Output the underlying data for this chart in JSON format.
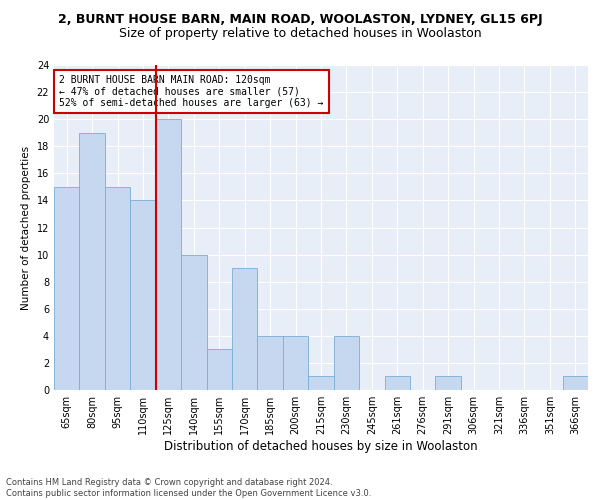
{
  "title": "2, BURNT HOUSE BARN, MAIN ROAD, WOOLASTON, LYDNEY, GL15 6PJ",
  "subtitle": "Size of property relative to detached houses in Woolaston",
  "xlabel": "Distribution of detached houses by size in Woolaston",
  "ylabel": "Number of detached properties",
  "categories": [
    "65sqm",
    "80sqm",
    "95sqm",
    "110sqm",
    "125sqm",
    "140sqm",
    "155sqm",
    "170sqm",
    "185sqm",
    "200sqm",
    "215sqm",
    "230sqm",
    "245sqm",
    "261sqm",
    "276sqm",
    "291sqm",
    "306sqm",
    "321sqm",
    "336sqm",
    "351sqm",
    "366sqm"
  ],
  "values": [
    15,
    19,
    15,
    14,
    20,
    10,
    3,
    9,
    4,
    4,
    1,
    4,
    0,
    1,
    0,
    1,
    0,
    0,
    0,
    0,
    1
  ],
  "bar_color": "#c5d8f0",
  "bar_edge_color": "#7aadd4",
  "vline_color": "#cc0000",
  "annotation_text": "2 BURNT HOUSE BARN MAIN ROAD: 120sqm\n← 47% of detached houses are smaller (57)\n52% of semi-detached houses are larger (63) →",
  "annotation_box_color": "#ffffff",
  "annotation_box_edge_color": "#cc0000",
  "ylim": [
    0,
    24
  ],
  "yticks": [
    0,
    2,
    4,
    6,
    8,
    10,
    12,
    14,
    16,
    18,
    20,
    22,
    24
  ],
  "bg_color": "#e8eef7",
  "footer1": "Contains HM Land Registry data © Crown copyright and database right 2024.",
  "footer2": "Contains public sector information licensed under the Open Government Licence v3.0.",
  "title_fontsize": 9,
  "subtitle_fontsize": 9,
  "xlabel_fontsize": 8.5,
  "ylabel_fontsize": 7.5,
  "tick_fontsize": 7,
  "annotation_fontsize": 7,
  "footer_fontsize": 6
}
